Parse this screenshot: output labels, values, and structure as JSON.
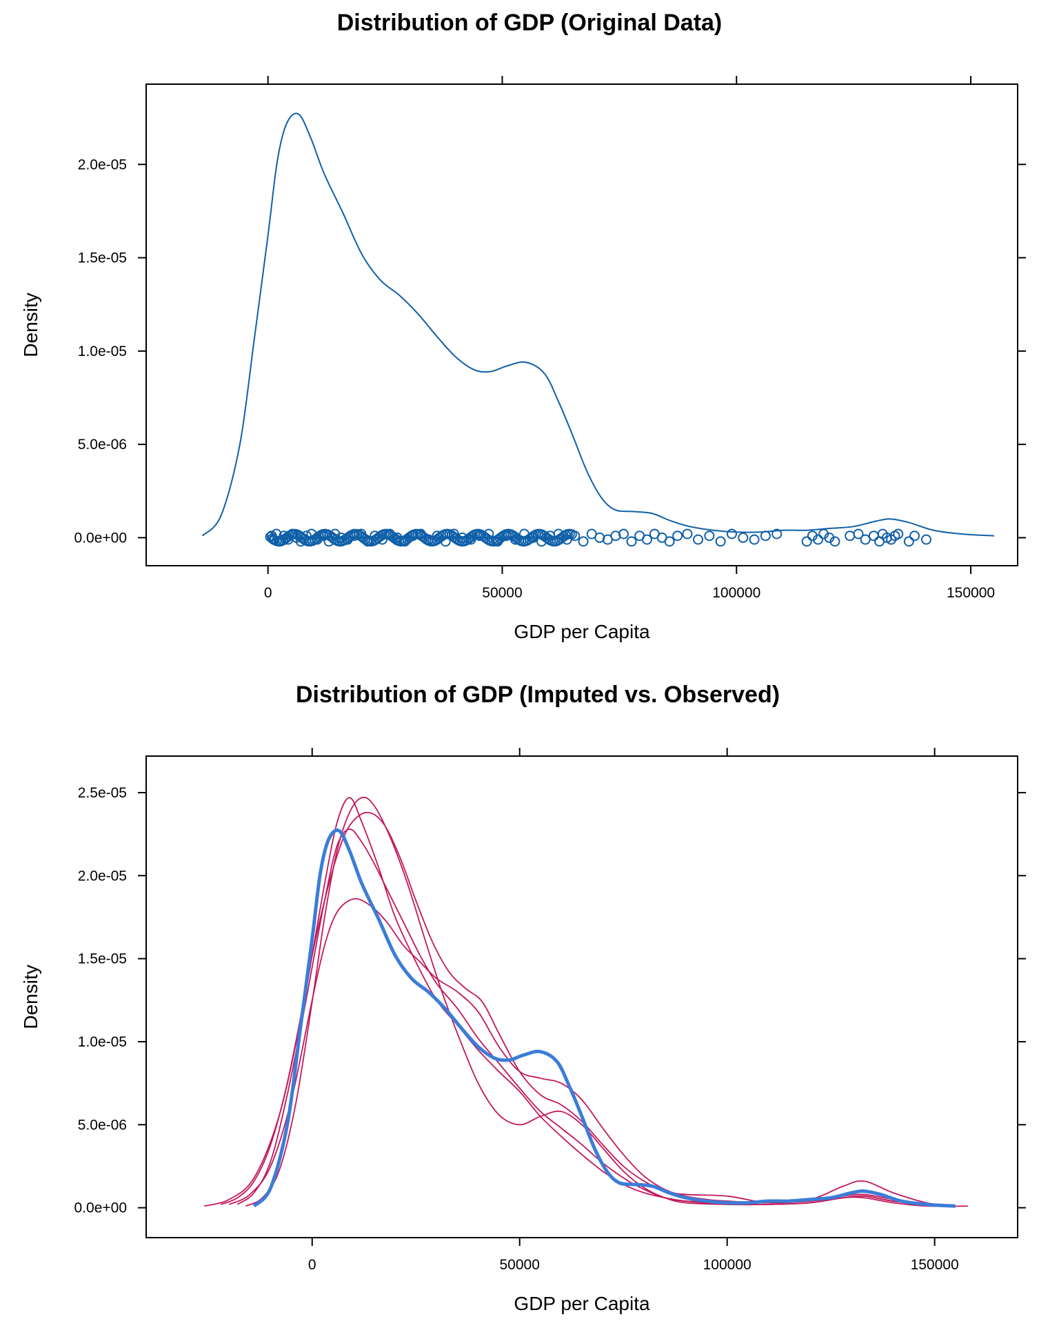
{
  "chart_data": [
    {
      "type": "line",
      "title": "Distribution of GDP (Original Data)",
      "xlabel": "GDP per Capita",
      "ylabel": "Density",
      "xlim": [
        -26000,
        160000
      ],
      "ylim": [
        -1.5e-06,
        2.43e-05
      ],
      "x_ticks": [
        0,
        50000,
        100000,
        150000
      ],
      "x_tick_labels": [
        "0",
        "50000",
        "100000",
        "150000"
      ],
      "y_ticks": [
        0,
        5e-06,
        1e-05,
        1.5e-05,
        2e-05
      ],
      "y_tick_labels": [
        "0.0e+00",
        "5.0e-06",
        "1.0e-05",
        "1.5e-05",
        "2.0e-05"
      ],
      "grid": false,
      "line_color": "#0F5FA8",
      "series": [
        {
          "x": [
            -14000,
            -10000,
            -6000,
            -3000,
            0,
            2000,
            4000,
            6500,
            9000,
            12000,
            16000,
            20000,
            24000,
            28000,
            32000,
            36000,
            40000,
            44000,
            47500,
            51000,
            55000,
            59000,
            62000,
            65000,
            68000,
            71000,
            74000,
            78000,
            82000,
            86000,
            90000,
            95000,
            100000,
            105000,
            110000,
            115000,
            120000,
            125000,
            130000,
            133000,
            137000,
            142000,
            148000,
            155000
          ],
          "y": [
            1e-07,
            1.2e-06,
            5e-06,
            1.05e-05,
            1.62e-05,
            2.02e-05,
            2.22e-05,
            2.27e-05,
            2.15e-05,
            1.95e-05,
            1.74e-05,
            1.52e-05,
            1.38e-05,
            1.3e-05,
            1.2e-05,
            1.08e-05,
            9.7e-06,
            9e-06,
            8.9e-06,
            9.2e-06,
            9.4e-06,
            8.8e-06,
            7.3e-06,
            5.5e-06,
            3.6e-06,
            2.2e-06,
            1.5e-06,
            1.4e-06,
            1.3e-06,
            9e-07,
            6e-07,
            4e-07,
            3e-07,
            3e-07,
            4e-07,
            4e-07,
            5e-07,
            6e-07,
            9e-07,
            1e-06,
            8e-07,
            4e-07,
            2e-07,
            1e-07
          ]
        }
      ],
      "rug": {
        "x": [
          800,
          1200,
          1800,
          2600,
          3400,
          4300,
          5200,
          6100,
          7000,
          8200,
          9300,
          10500,
          11800,
          13000,
          14300,
          15600,
          17000,
          18400,
          19900,
          21300,
          22800,
          24400,
          26000,
          27600,
          29200,
          30900,
          32600,
          34300,
          36100,
          37900,
          39700,
          41500,
          43300,
          45200,
          47100,
          49000,
          50900,
          52800,
          54700,
          56600,
          58400,
          60200,
          62000,
          63800,
          65500,
          67300,
          69100,
          70800,
          72500,
          74200,
          75900,
          77600,
          79300,
          80900,
          82500,
          84100,
          85700,
          87400,
          89500,
          91800,
          94200,
          96600,
          99000,
          101400,
          103800,
          106200,
          108600,
          115000,
          116200,
          117400,
          118600,
          119800,
          121000,
          124200,
          126000,
          127500,
          129300,
          130500,
          131200,
          132100,
          133000,
          133800,
          134500,
          136800,
          138000,
          140500
        ],
        "y": [
          1e-07,
          -1e-07,
          2e-07,
          -2e-07,
          1e-07,
          -1e-07,
          2e-07,
          0,
          -2e-07,
          1e-07,
          2e-07,
          -1e-07,
          1e-07,
          -2e-07,
          2e-07,
          0,
          -1e-07,
          1e-07,
          2e-07,
          -2e-07,
          1e-07,
          -1e-07,
          2e-07,
          0,
          -2e-07,
          1e-07,
          2e-07,
          -1e-07,
          1e-07,
          -2e-07,
          2e-07,
          0,
          -1e-07,
          1e-07,
          2e-07,
          -2e-07,
          1e-07,
          -1e-07,
          2e-07,
          0,
          -2e-07,
          1e-07,
          2e-07,
          -1e-07,
          1e-07,
          -2e-07,
          2e-07,
          0,
          -1e-07,
          1e-07,
          2e-07,
          -2e-07,
          1e-07,
          -1e-07,
          2e-07,
          0,
          -2e-07,
          1e-07,
          2e-07,
          -1e-07,
          1e-07,
          -2e-07,
          2e-07,
          0,
          -1e-07,
          1e-07,
          2e-07,
          -2e-07,
          1e-07,
          -1e-07,
          2e-07,
          0,
          -2e-07,
          1e-07,
          2e-07,
          -1e-07,
          1e-07,
          -2e-07,
          2e-07,
          0,
          -1e-07,
          1e-07,
          2e-07,
          -2e-07,
          1e-07,
          -1e-07
        ]
      }
    },
    {
      "type": "line",
      "title": "Distribution of GDP (Imputed vs. Observed)",
      "xlabel": "GDP per Capita",
      "ylabel": "Density",
      "xlim": [
        -40000,
        170000
      ],
      "ylim": [
        -1.8e-06,
        2.72e-05
      ],
      "x_ticks": [
        0,
        50000,
        100000,
        150000
      ],
      "x_tick_labels": [
        "0",
        "50000",
        "100000",
        "150000"
      ],
      "y_ticks": [
        0,
        5e-06,
        1e-05,
        1.5e-05,
        2e-05,
        2.5e-05
      ],
      "y_tick_labels": [
        "0.0e+00",
        "5.0e-06",
        "1.0e-05",
        "1.5e-05",
        "2.0e-05",
        "2.5e-05"
      ],
      "grid": false,
      "observed_color": "#3B7DD8",
      "imputed_color": "#C2185B",
      "series": [
        {
          "x": [
            -14000,
            -10000,
            -6000,
            -3000,
            0,
            2000,
            4000,
            6500,
            9000,
            12000,
            16000,
            20000,
            24000,
            28000,
            32000,
            36000,
            40000,
            44000,
            47500,
            51000,
            55000,
            59000,
            62000,
            65000,
            68000,
            71000,
            74000,
            78000,
            82000,
            86000,
            90000,
            95000,
            100000,
            105000,
            110000,
            115000,
            120000,
            125000,
            130000,
            133000,
            137000,
            142000,
            148000,
            155000
          ],
          "y": [
            1e-07,
            1.2e-06,
            5e-06,
            1.05e-05,
            1.62e-05,
            2.02e-05,
            2.22e-05,
            2.27e-05,
            2.15e-05,
            1.95e-05,
            1.74e-05,
            1.52e-05,
            1.38e-05,
            1.3e-05,
            1.2e-05,
            1.08e-05,
            9.7e-06,
            9e-06,
            8.9e-06,
            9.2e-06,
            9.4e-06,
            8.8e-06,
            7.3e-06,
            5.5e-06,
            3.6e-06,
            2.2e-06,
            1.5e-06,
            1.4e-06,
            1.3e-06,
            9e-07,
            6e-07,
            4e-07,
            3e-07,
            3e-07,
            4e-07,
            4e-07,
            5e-07,
            6e-07,
            9e-07,
            1e-06,
            8e-07,
            4e-07,
            2e-07,
            1e-07
          ]
        },
        {
          "x": [
            -26000,
            -20000,
            -14000,
            -8000,
            -3000,
            0,
            3000,
            6000,
            9000,
            12000,
            16000,
            20000,
            25000,
            30000,
            35000,
            40000,
            45000,
            50000,
            55000,
            60000,
            65000,
            70000,
            75000,
            80000,
            85000,
            90000,
            100000,
            110000,
            120000,
            128000,
            133000,
            140000,
            148000,
            158000
          ],
          "y": [
            1e-07,
            5e-07,
            1.8e-06,
            5.5e-06,
            1.1e-05,
            1.52e-05,
            1.95e-05,
            2.32e-05,
            2.47e-05,
            2.32e-05,
            2.05e-05,
            1.75e-05,
            1.48e-05,
            1.25e-05,
            1.1e-05,
            9.5e-06,
            8.2e-06,
            7e-06,
            5.5e-06,
            4.3e-06,
            3.2e-06,
            2.2e-06,
            1.4e-06,
            9e-07,
            6e-07,
            4e-07,
            2e-07,
            2e-07,
            3e-07,
            6e-07,
            6e-07,
            3e-07,
            1e-07,
            1e-07
          ]
        },
        {
          "x": [
            -20000,
            -15000,
            -10000,
            -5000,
            0,
            3000,
            6000,
            10000,
            14000,
            18000,
            22000,
            26000,
            30000,
            35000,
            40000,
            45000,
            50000,
            55000,
            60000,
            65000,
            70000,
            75000,
            80000,
            85000,
            90000,
            95000,
            100000,
            110000,
            120000,
            128000,
            133000,
            140000,
            148000,
            155000
          ],
          "y": [
            2e-07,
            8e-07,
            2.5e-06,
            6.5e-06,
            1.25e-05,
            1.58e-05,
            1.78e-05,
            1.86e-05,
            1.82e-05,
            1.72e-05,
            1.58e-05,
            1.48e-05,
            1.38e-05,
            1.3e-05,
            1.18e-05,
            9.7e-06,
            8.2e-06,
            7.8e-06,
            7.5e-06,
            6.5e-06,
            4.8e-06,
            3.2e-06,
            1.9e-06,
            1.1e-06,
            7e-07,
            5e-07,
            4e-07,
            3e-07,
            4e-07,
            7e-07,
            8e-07,
            5e-07,
            2e-07,
            1e-07
          ]
        },
        {
          "x": [
            -16000,
            -12000,
            -8000,
            -4000,
            0,
            3000,
            6000,
            9000,
            12000,
            15000,
            19000,
            23000,
            27000,
            31000,
            35000,
            40000,
            45000,
            50000,
            55000,
            60000,
            65000,
            70000,
            75000,
            80000,
            85000,
            90000,
            100000,
            110000,
            120000,
            128000,
            133000,
            140000,
            148000,
            155000
          ],
          "y": [
            1e-07,
            6e-07,
            2.2e-06,
            6.2e-06,
            1.24e-05,
            1.75e-05,
            2.15e-05,
            2.38e-05,
            2.47e-05,
            2.42e-05,
            2.22e-05,
            1.95e-05,
            1.63e-05,
            1.32e-05,
            1.05e-05,
            7.5e-06,
            5.6e-06,
            5e-06,
            5.5e-06,
            5.8e-06,
            5e-06,
            3.6e-06,
            2.2e-06,
            1.2e-06,
            6e-07,
            3e-07,
            2e-07,
            2e-07,
            3e-07,
            6e-07,
            7e-07,
            4e-07,
            2e-07,
            1e-07
          ]
        },
        {
          "x": [
            -18000,
            -14000,
            -10000,
            -6000,
            -2000,
            0,
            3000,
            6000,
            9000,
            12000,
            15000,
            18000,
            22000,
            26000,
            30000,
            35000,
            40000,
            45000,
            50000,
            55000,
            60000,
            65000,
            70000,
            75000,
            80000,
            85000,
            90000,
            100000,
            110000,
            120000,
            128000,
            133000,
            140000,
            148000,
            155000
          ],
          "y": [
            2e-07,
            9e-07,
            2.8e-06,
            6.8e-06,
            1.18e-05,
            1.45e-05,
            1.85e-05,
            2.18e-05,
            2.28e-05,
            2.2e-05,
            2.07e-05,
            1.92e-05,
            1.72e-05,
            1.52e-05,
            1.35e-05,
            1.2e-05,
            1.02e-05,
            8.7e-06,
            7.2e-06,
            5.8e-06,
            4.8e-06,
            3.8e-06,
            2.7e-06,
            1.8e-06,
            1.1e-06,
            6e-07,
            4e-07,
            3e-07,
            3e-07,
            4e-07,
            6e-07,
            7e-07,
            4e-07,
            2e-07,
            1e-07
          ]
        },
        {
          "x": [
            -22000,
            -18000,
            -14000,
            -10000,
            -6000,
            -2000,
            0,
            3000,
            6000,
            9000,
            13000,
            17000,
            21000,
            25000,
            29000,
            33000,
            37000,
            41000,
            45000,
            50000,
            55000,
            60000,
            65000,
            70000,
            75000,
            80000,
            85000,
            90000,
            100000,
            110000,
            120000,
            128000,
            133000,
            140000,
            148000,
            155000
          ],
          "y": [
            2e-07,
            6e-07,
            1.6e-06,
            3.8e-06,
            7.5e-06,
            1.25e-05,
            1.52e-05,
            1.85e-05,
            2.12e-05,
            2.3e-05,
            2.38e-05,
            2.32e-05,
            2.12e-05,
            1.85e-05,
            1.6e-05,
            1.42e-05,
            1.32e-05,
            1.24e-05,
            1.05e-05,
            8.2e-06,
            6.8e-06,
            6.2e-06,
            5.2e-06,
            3.8e-06,
            2.5e-06,
            1.6e-06,
            1e-06,
            8e-07,
            7e-07,
            3e-07,
            5e-07,
            1.3e-06,
            1.6e-06,
            9e-07,
            3e-07,
            1e-07
          ]
        }
      ]
    }
  ]
}
